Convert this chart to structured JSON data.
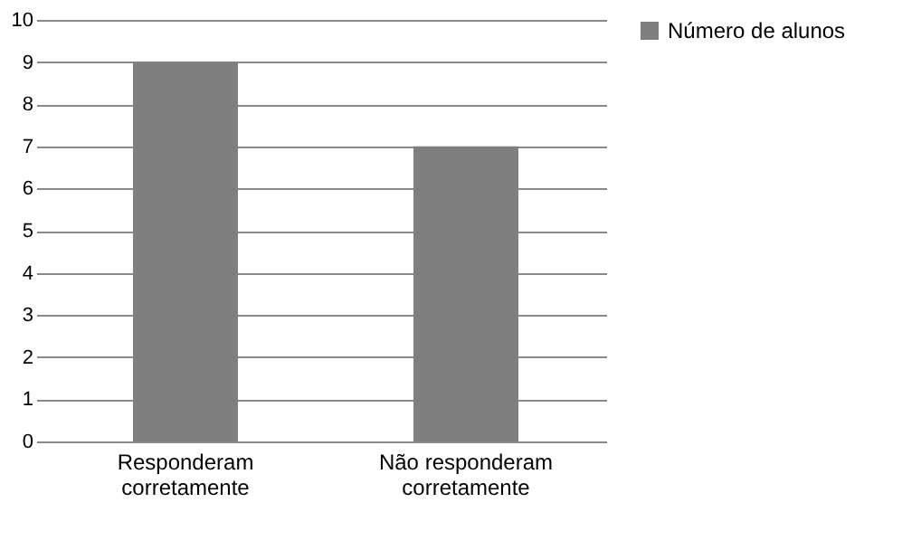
{
  "chart_data": {
    "type": "bar",
    "categories": [
      "Responderam corretamente",
      "Não responderam corretamente"
    ],
    "series": [
      {
        "name": "Número de alunos",
        "color": "#7f7f7f",
        "values": [
          9,
          7
        ]
      }
    ],
    "ylim": [
      0,
      10
    ],
    "yticks": [
      0,
      1,
      2,
      3,
      4,
      5,
      6,
      7,
      8,
      9,
      10
    ],
    "grid": "y",
    "legend": "right"
  }
}
